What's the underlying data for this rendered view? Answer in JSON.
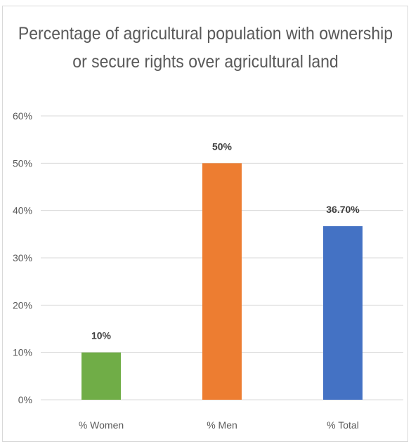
{
  "chart_data": {
    "type": "bar",
    "title": "Percentage of agricultural population with ownership or secure rights over agricultural land",
    "categories": [
      "% Women",
      "% Men",
      "% Total"
    ],
    "values": [
      10,
      50,
      36.7
    ],
    "data_labels": [
      "10%",
      "50%",
      "36.70%"
    ],
    "colors": [
      "#70ad47",
      "#ed7d31",
      "#4472c4"
    ],
    "ylim": [
      0,
      60
    ],
    "yticks": [
      0,
      10,
      20,
      30,
      40,
      50,
      60
    ],
    "ytick_labels": [
      "0%",
      "10%",
      "20%",
      "30%",
      "40%",
      "50%",
      "60%"
    ],
    "grid": true,
    "legend": "none",
    "xlabel": "",
    "ylabel": ""
  }
}
